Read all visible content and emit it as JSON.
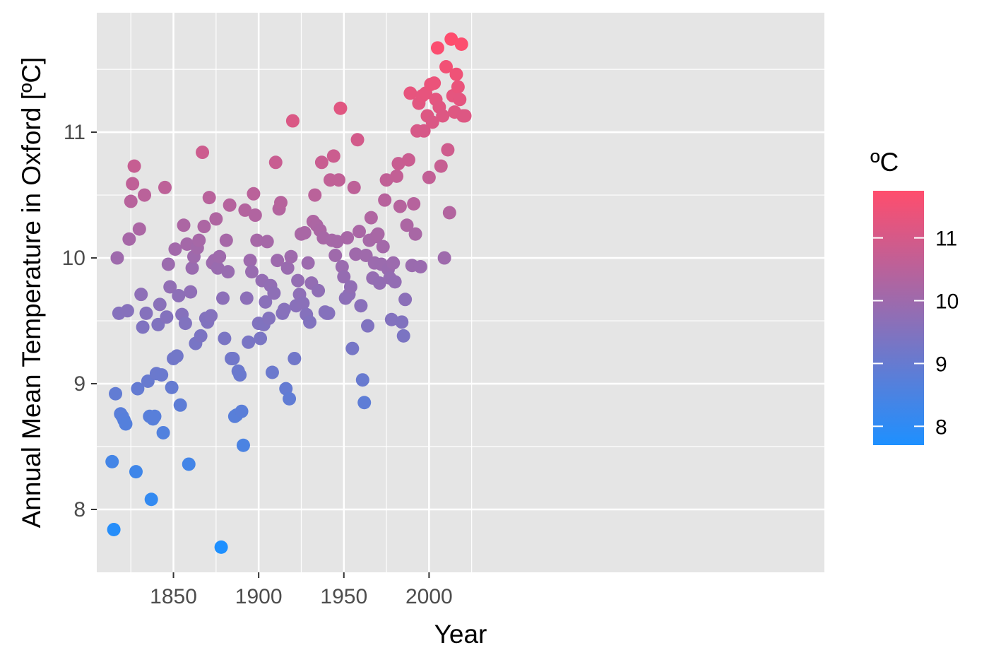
{
  "chart_data": {
    "type": "scatter",
    "title": "",
    "xlabel": "Year",
    "ylabel": "Annual Mean Temperature in Oxford [ºC]",
    "xlim": [
      1805,
      2232
    ],
    "ylim": [
      7.5,
      11.95
    ],
    "xticks": [
      1850,
      1900,
      1950,
      2000
    ],
    "yticks": [
      8,
      9,
      10,
      11
    ],
    "grid": true,
    "color_scale": {
      "title": "ºC",
      "low_color": "#1E90FF",
      "high_color": "#FF4D6D",
      "min": 7.7,
      "max": 11.75,
      "ticks": [
        8,
        9,
        10,
        11
      ],
      "position": "right"
    },
    "background_color": "#E5E5E5",
    "points": [
      [
        1814,
        8.38
      ],
      [
        1815,
        7.84
      ],
      [
        1816,
        8.92
      ],
      [
        1817,
        10.0
      ],
      [
        1818,
        9.56
      ],
      [
        1819,
        8.76
      ],
      [
        1820,
        8.74
      ],
      [
        1821,
        8.71
      ],
      [
        1822,
        8.68
      ],
      [
        1823,
        9.58
      ],
      [
        1824,
        10.15
      ],
      [
        1825,
        10.45
      ],
      [
        1826,
        10.59
      ],
      [
        1827,
        10.73
      ],
      [
        1828,
        8.3
      ],
      [
        1829,
        8.96
      ],
      [
        1830,
        10.23
      ],
      [
        1831,
        9.71
      ],
      [
        1832,
        9.45
      ],
      [
        1833,
        10.5
      ],
      [
        1834,
        9.56
      ],
      [
        1835,
        9.02
      ],
      [
        1836,
        8.74
      ],
      [
        1837,
        8.08
      ],
      [
        1838,
        8.72
      ],
      [
        1839,
        8.74
      ],
      [
        1840,
        9.08
      ],
      [
        1841,
        9.47
      ],
      [
        1842,
        9.63
      ],
      [
        1843,
        9.07
      ],
      [
        1844,
        8.61
      ],
      [
        1845,
        10.56
      ],
      [
        1846,
        9.53
      ],
      [
        1847,
        9.95
      ],
      [
        1848,
        9.77
      ],
      [
        1849,
        8.97
      ],
      [
        1850,
        9.2
      ],
      [
        1851,
        10.07
      ],
      [
        1852,
        9.22
      ],
      [
        1853,
        9.7
      ],
      [
        1854,
        8.83
      ],
      [
        1855,
        9.55
      ],
      [
        1856,
        10.26
      ],
      [
        1857,
        9.48
      ],
      [
        1858,
        10.11
      ],
      [
        1859,
        8.36
      ],
      [
        1860,
        9.73
      ],
      [
        1861,
        9.92
      ],
      [
        1862,
        10.01
      ],
      [
        1863,
        9.32
      ],
      [
        1864,
        10.08
      ],
      [
        1865,
        10.14
      ],
      [
        1866,
        9.38
      ],
      [
        1867,
        10.84
      ],
      [
        1868,
        10.25
      ],
      [
        1869,
        9.52
      ],
      [
        1870,
        9.49
      ],
      [
        1871,
        10.48
      ],
      [
        1872,
        9.54
      ],
      [
        1873,
        9.96
      ],
      [
        1874,
        9.98
      ],
      [
        1875,
        10.31
      ],
      [
        1876,
        9.92
      ],
      [
        1877,
        10.01
      ],
      [
        1878,
        7.7
      ],
      [
        1879,
        9.68
      ],
      [
        1880,
        9.36
      ],
      [
        1881,
        10.14
      ],
      [
        1882,
        9.89
      ],
      [
        1883,
        10.42
      ],
      [
        1884,
        9.2
      ],
      [
        1885,
        9.2
      ],
      [
        1886,
        8.74
      ],
      [
        1887,
        8.75
      ],
      [
        1888,
        9.1
      ],
      [
        1889,
        9.07
      ],
      [
        1890,
        8.78
      ],
      [
        1891,
        8.51
      ],
      [
        1892,
        10.38
      ],
      [
        1893,
        9.68
      ],
      [
        1894,
        9.33
      ],
      [
        1895,
        9.98
      ],
      [
        1896,
        9.89
      ],
      [
        1897,
        10.51
      ],
      [
        1898,
        10.34
      ],
      [
        1899,
        10.14
      ],
      [
        1900,
        9.48
      ],
      [
        1901,
        9.36
      ],
      [
        1902,
        9.82
      ],
      [
        1903,
        9.47
      ],
      [
        1904,
        9.65
      ],
      [
        1905,
        10.13
      ],
      [
        1906,
        9.52
      ],
      [
        1907,
        9.78
      ],
      [
        1908,
        9.09
      ],
      [
        1909,
        9.72
      ],
      [
        1910,
        10.76
      ],
      [
        1911,
        9.98
      ],
      [
        1912,
        10.39
      ],
      [
        1913,
        10.44
      ],
      [
        1914,
        9.56
      ],
      [
        1915,
        9.59
      ],
      [
        1916,
        8.96
      ],
      [
        1917,
        9.92
      ],
      [
        1918,
        8.88
      ],
      [
        1919,
        10.01
      ],
      [
        1920,
        11.09
      ],
      [
        1921,
        9.2
      ],
      [
        1922,
        9.62
      ],
      [
        1923,
        9.82
      ],
      [
        1924,
        9.71
      ],
      [
        1925,
        10.19
      ],
      [
        1926,
        9.64
      ],
      [
        1927,
        10.2
      ],
      [
        1928,
        9.55
      ],
      [
        1929,
        9.96
      ],
      [
        1930,
        9.49
      ],
      [
        1931,
        9.8
      ],
      [
        1932,
        10.29
      ],
      [
        1933,
        10.5
      ],
      [
        1934,
        10.26
      ],
      [
        1935,
        9.74
      ],
      [
        1936,
        10.22
      ],
      [
        1937,
        10.76
      ],
      [
        1938,
        10.16
      ],
      [
        1939,
        9.57
      ],
      [
        1940,
        9.56
      ],
      [
        1941,
        9.56
      ],
      [
        1942,
        10.62
      ],
      [
        1943,
        10.14
      ],
      [
        1944,
        10.81
      ],
      [
        1945,
        10.02
      ],
      [
        1946,
        10.13
      ],
      [
        1947,
        10.62
      ],
      [
        1948,
        11.19
      ],
      [
        1949,
        9.93
      ],
      [
        1950,
        9.85
      ],
      [
        1951,
        9.68
      ],
      [
        1952,
        10.16
      ],
      [
        1953,
        9.71
      ],
      [
        1954,
        9.77
      ],
      [
        1955,
        9.28
      ],
      [
        1956,
        10.56
      ],
      [
        1957,
        10.03
      ],
      [
        1958,
        10.94
      ],
      [
        1959,
        10.21
      ],
      [
        1960,
        9.62
      ],
      [
        1961,
        9.03
      ],
      [
        1962,
        8.85
      ],
      [
        1963,
        10.02
      ],
      [
        1964,
        9.46
      ],
      [
        1965,
        10.14
      ],
      [
        1966,
        10.32
      ],
      [
        1967,
        9.84
      ],
      [
        1968,
        9.96
      ],
      [
        1969,
        10.17
      ],
      [
        1970,
        10.19
      ],
      [
        1971,
        9.8
      ],
      [
        1972,
        9.95
      ],
      [
        1973,
        10.09
      ],
      [
        1974,
        10.46
      ],
      [
        1975,
        10.62
      ],
      [
        1976,
        9.91
      ],
      [
        1977,
        9.84
      ],
      [
        1978,
        9.51
      ],
      [
        1979,
        9.96
      ],
      [
        1980,
        9.81
      ],
      [
        1981,
        10.65
      ],
      [
        1982,
        10.75
      ],
      [
        1983,
        10.41
      ],
      [
        1984,
        9.49
      ],
      [
        1985,
        9.38
      ],
      [
        1986,
        9.67
      ],
      [
        1987,
        10.26
      ],
      [
        1988,
        10.78
      ],
      [
        1989,
        11.31
      ],
      [
        1990,
        9.94
      ],
      [
        1991,
        10.43
      ],
      [
        1992,
        10.19
      ],
      [
        1993,
        11.01
      ],
      [
        1994,
        11.23
      ],
      [
        1995,
        9.93
      ],
      [
        1996,
        11.29
      ],
      [
        1997,
        11.01
      ],
      [
        1998,
        11.31
      ],
      [
        1999,
        11.13
      ],
      [
        2000,
        10.64
      ],
      [
        2001,
        11.38
      ],
      [
        2002,
        11.08
      ],
      [
        2003,
        11.39
      ],
      [
        2004,
        11.26
      ],
      [
        2005,
        11.67
      ],
      [
        2006,
        11.2
      ],
      [
        2007,
        10.73
      ],
      [
        2008,
        11.13
      ],
      [
        2009,
        10.0
      ],
      [
        2010,
        11.52
      ],
      [
        2011,
        10.86
      ],
      [
        2012,
        10.36
      ],
      [
        2013,
        11.74
      ],
      [
        2014,
        11.29
      ],
      [
        2015,
        11.16
      ],
      [
        2016,
        11.46
      ],
      [
        2017,
        11.36
      ],
      [
        2018,
        11.26
      ],
      [
        2019,
        11.7
      ],
      [
        2020,
        11.13
      ],
      [
        2021,
        11.13
      ]
    ]
  }
}
